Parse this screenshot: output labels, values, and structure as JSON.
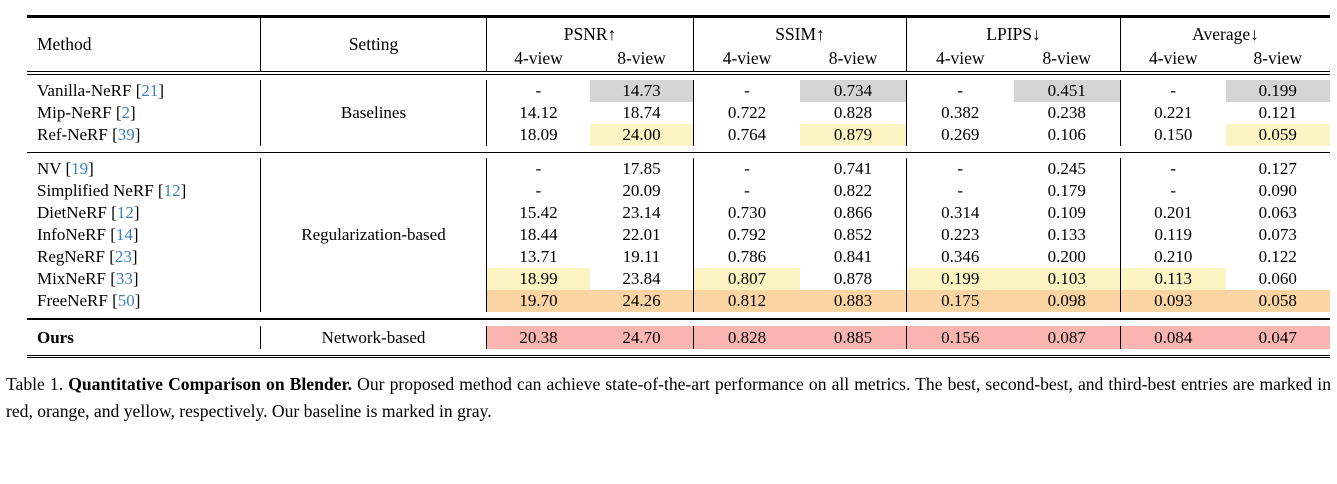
{
  "header": {
    "method": "Method",
    "setting": "Setting",
    "groups": [
      {
        "label": "PSNR↑"
      },
      {
        "label": "SSIM↑"
      },
      {
        "label": "LPIPS↓"
      },
      {
        "label": "Average↓"
      }
    ],
    "sub4": "4-view",
    "sub8": "8-view"
  },
  "colors": {
    "best": "#fab5b1",
    "second_best": "#fbd4a4",
    "third_best": "#fcf4c3",
    "baseline": "#d5d5d5",
    "citation": "#3d7ebf"
  },
  "sections": [
    {
      "setting": "Baselines",
      "rows": [
        {
          "name": "Vanilla-NeRF",
          "cite": "21",
          "p4": "-",
          "p8": "14.73",
          "s4": "-",
          "s8": "0.734",
          "l4": "-",
          "l8": "0.451",
          "a4": "-",
          "a8": "0.199",
          "hl": {
            "p8": "hl-gray",
            "s8": "hl-gray",
            "l8": "hl-gray",
            "a8": "hl-gray"
          }
        },
        {
          "name": "Mip-NeRF",
          "cite": "2",
          "p4": "14.12",
          "p8": "18.74",
          "s4": "0.722",
          "s8": "0.828",
          "l4": "0.382",
          "l8": "0.238",
          "a4": "0.221",
          "a8": "0.121",
          "hl": {}
        },
        {
          "name": "Ref-NeRF",
          "cite": "39",
          "p4": "18.09",
          "p8": "24.00",
          "s4": "0.764",
          "s8": "0.879",
          "l4": "0.269",
          "l8": "0.106",
          "a4": "0.150",
          "a8": "0.059",
          "hl": {
            "p8": "hl-yellow",
            "s8": "hl-yellow",
            "a8": "hl-yellow"
          }
        }
      ]
    },
    {
      "setting": "Regularization-based",
      "rows": [
        {
          "name": "NV",
          "cite": "19",
          "p4": "-",
          "p8": "17.85",
          "s4": "-",
          "s8": "0.741",
          "l4": "-",
          "l8": "0.245",
          "a4": "-",
          "a8": "0.127",
          "hl": {}
        },
        {
          "name": "Simplified NeRF",
          "cite": "12",
          "p4": "-",
          "p8": "20.09",
          "s4": "-",
          "s8": "0.822",
          "l4": "-",
          "l8": "0.179",
          "a4": "-",
          "a8": "0.090",
          "hl": {}
        },
        {
          "name": "DietNeRF",
          "cite": "12",
          "p4": "15.42",
          "p8": "23.14",
          "s4": "0.730",
          "s8": "0.866",
          "l4": "0.314",
          "l8": "0.109",
          "a4": "0.201",
          "a8": "0.063",
          "hl": {}
        },
        {
          "name": "InfoNeRF",
          "cite": "14",
          "p4": "18.44",
          "p8": "22.01",
          "s4": "0.792",
          "s8": "0.852",
          "l4": "0.223",
          "l8": "0.133",
          "a4": "0.119",
          "a8": "0.073",
          "hl": {}
        },
        {
          "name": "RegNeRF",
          "cite": "23",
          "p4": "13.71",
          "p8": "19.11",
          "s4": "0.786",
          "s8": "0.841",
          "l4": "0.346",
          "l8": "0.200",
          "a4": "0.210",
          "a8": "0.122",
          "hl": {}
        },
        {
          "name": "MixNeRF",
          "cite": "33",
          "p4": "18.99",
          "p8": "23.84",
          "s4": "0.807",
          "s8": "0.878",
          "l4": "0.199",
          "l8": "0.103",
          "a4": "0.113",
          "a8": "0.060",
          "hl": {
            "p4": "hl-yellow",
            "s4": "hl-yellow",
            "l4": "hl-yellow",
            "l8": "hl-yellow",
            "a4": "hl-yellow"
          }
        },
        {
          "name": "FreeNeRF",
          "cite": "50",
          "p4": "19.70",
          "p8": "24.26",
          "s4": "0.812",
          "s8": "0.883",
          "l4": "0.175",
          "l8": "0.098",
          "a4": "0.093",
          "a8": "0.058",
          "hl": {
            "p4": "hl-orange",
            "p8": "hl-orange",
            "s4": "hl-orange",
            "s8": "hl-orange",
            "l4": "hl-orange",
            "l8": "hl-orange",
            "a4": "hl-orange",
            "a8": "hl-orange"
          }
        }
      ]
    },
    {
      "setting": "Network-based",
      "rows": [
        {
          "name": "Ours",
          "cite": "",
          "p4": "20.38",
          "p8": "24.70",
          "s4": "0.828",
          "s8": "0.885",
          "l4": "0.156",
          "l8": "0.087",
          "a4": "0.084",
          "a8": "0.047",
          "hl": {
            "p4": "hl-red",
            "p8": "hl-red",
            "s4": "hl-red",
            "s8": "hl-red",
            "l4": "hl-red",
            "l8": "hl-red",
            "a4": "hl-red",
            "a8": "hl-red"
          }
        }
      ]
    }
  ],
  "caption": {
    "label": "Table 1.",
    "title": "Quantitative Comparison on Blender.",
    "body": "Our proposed method can achieve state-of-the-art performance on all metrics. The best, second-best, and third-best entries are marked in red, orange, and yellow, respectively. Our baseline is marked in gray."
  }
}
